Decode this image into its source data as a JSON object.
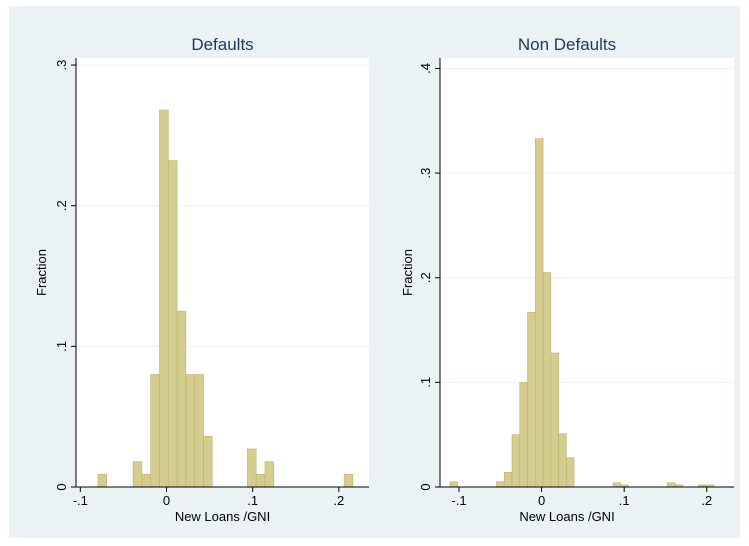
{
  "chart_data": [
    {
      "type": "bar",
      "title": "Defaults",
      "xlabel": "New Loans /GNI",
      "ylabel": "Fraction",
      "xlim": [
        -0.105,
        0.235
      ],
      "ylim": [
        0,
        0.305
      ],
      "x_ticks": [
        {
          "value": -0.1,
          "label": "-.1"
        },
        {
          "value": 0,
          "label": "0"
        },
        {
          "value": 0.1,
          "label": ".1"
        },
        {
          "value": 0.2,
          "label": ".2"
        }
      ],
      "y_ticks": [
        {
          "value": 0,
          "label": "0"
        },
        {
          "value": 0.1,
          "label": ".1"
        },
        {
          "value": 0.2,
          "label": ".2"
        },
        {
          "value": 0.3,
          "label": ".3"
        }
      ],
      "bin_width": 0.0102,
      "bins": [
        {
          "x": -0.0795,
          "y": 0.009
        },
        {
          "x": -0.0387,
          "y": 0.018
        },
        {
          "x": -0.0285,
          "y": 0.009
        },
        {
          "x": -0.0183,
          "y": 0.08
        },
        {
          "x": -0.0081,
          "y": 0.268
        },
        {
          "x": 0.0021,
          "y": 0.232
        },
        {
          "x": 0.0123,
          "y": 0.125
        },
        {
          "x": 0.0225,
          "y": 0.08
        },
        {
          "x": 0.0327,
          "y": 0.08
        },
        {
          "x": 0.0429,
          "y": 0.036
        },
        {
          "x": 0.0939,
          "y": 0.027
        },
        {
          "x": 0.1041,
          "y": 0.009
        },
        {
          "x": 0.1143,
          "y": 0.018
        },
        {
          "x": 0.2061,
          "y": 0.009
        }
      ]
    },
    {
      "type": "bar",
      "title": "Non Defaults",
      "xlabel": "New Loans /GNI",
      "ylabel": "Fraction",
      "xlim": [
        -0.123,
        0.233
      ],
      "ylim": [
        0,
        0.41
      ],
      "x_ticks": [
        {
          "value": -0.1,
          "label": "-.1"
        },
        {
          "value": 0,
          "label": "0"
        },
        {
          "value": 0.1,
          "label": ".1"
        },
        {
          "value": 0.2,
          "label": ".2"
        }
      ],
      "y_ticks": [
        {
          "value": 0,
          "label": "0"
        },
        {
          "value": 0.1,
          "label": ".1"
        },
        {
          "value": 0.2,
          "label": ".2"
        },
        {
          "value": 0.3,
          "label": ".3"
        },
        {
          "value": 0.4,
          "label": ".4"
        }
      ],
      "bin_width": 0.0094,
      "bins": [
        {
          "x": -0.111,
          "y": 0.005
        },
        {
          "x": -0.0546,
          "y": 0.005
        },
        {
          "x": -0.0452,
          "y": 0.014
        },
        {
          "x": -0.0358,
          "y": 0.05
        },
        {
          "x": -0.0264,
          "y": 0.1
        },
        {
          "x": -0.017,
          "y": 0.167
        },
        {
          "x": -0.0076,
          "y": 0.333
        },
        {
          "x": 0.0018,
          "y": 0.205
        },
        {
          "x": 0.0112,
          "y": 0.128
        },
        {
          "x": 0.0206,
          "y": 0.051
        },
        {
          "x": 0.03,
          "y": 0.028
        },
        {
          "x": 0.0864,
          "y": 0.004
        },
        {
          "x": 0.0958,
          "y": 0.002
        },
        {
          "x": 0.1522,
          "y": 0.004
        },
        {
          "x": 0.1616,
          "y": 0.002
        },
        {
          "x": 0.1898,
          "y": 0.002
        },
        {
          "x": 0.1992,
          "y": 0.002
        }
      ]
    }
  ],
  "colors": {
    "background": "#eaf2f3",
    "plot_background": "#ffffff",
    "bar_fill": "#d5cd8f",
    "bar_edge": "#bcb36e",
    "grid": "#eaf2f3",
    "title": "#1e3a5a"
  }
}
